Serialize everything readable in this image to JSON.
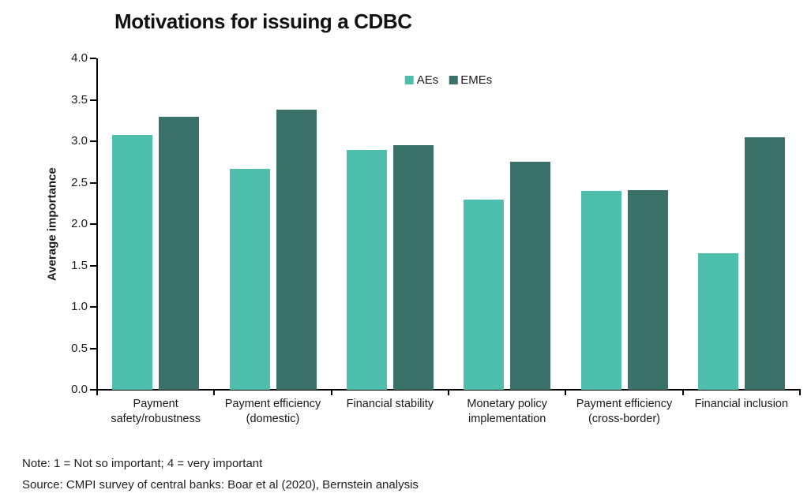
{
  "title": "Motivations for issuing a CDBC",
  "legend": {
    "items": [
      {
        "label": "AEs",
        "color": "#4EBEAD"
      },
      {
        "label": "EMEs",
        "color": "#3A7269"
      }
    ]
  },
  "chart_data": {
    "type": "bar",
    "title": "Motivations for issuing a CDBC",
    "categories": [
      "Payment safety/robustness",
      "Payment efficiency (domestic)",
      "Financial stability",
      "Monetary policy implementation",
      "Payment efficiency (cross-border)",
      "Financial inclusion"
    ],
    "category_label_lines": [
      [
        "Payment",
        "safety/robustness"
      ],
      [
        "Payment efficiency",
        "(domestic)"
      ],
      [
        "Financial stability"
      ],
      [
        "Monetary policy",
        "implementation"
      ],
      [
        "Payment efficiency",
        "(cross-border)"
      ],
      [
        "Financial inclusion"
      ]
    ],
    "series": [
      {
        "name": "AEs",
        "color": "#4EBEAD",
        "values": [
          3.08,
          2.67,
          2.9,
          2.3,
          2.4,
          1.65
        ]
      },
      {
        "name": "EMEs",
        "color": "#3A7269",
        "values": [
          3.3,
          3.38,
          2.95,
          2.75,
          2.41,
          3.05
        ]
      }
    ],
    "xlabel": "",
    "ylabel": "Average importance",
    "ylim": [
      0,
      4
    ],
    "ytick_step": 0.5,
    "ytick_labels": [
      "0.0",
      "0.5",
      "1.0",
      "1.5",
      "2.0",
      "2.5",
      "3.0",
      "3.5",
      "4.0"
    ],
    "grid": false,
    "legend_position": "top-center"
  },
  "notes": {
    "note": "Note: 1 = Not so important;  4 = very important",
    "source": "Source: CMPI survey of central banks: Boar et al (2020), Bernstein analysis"
  }
}
